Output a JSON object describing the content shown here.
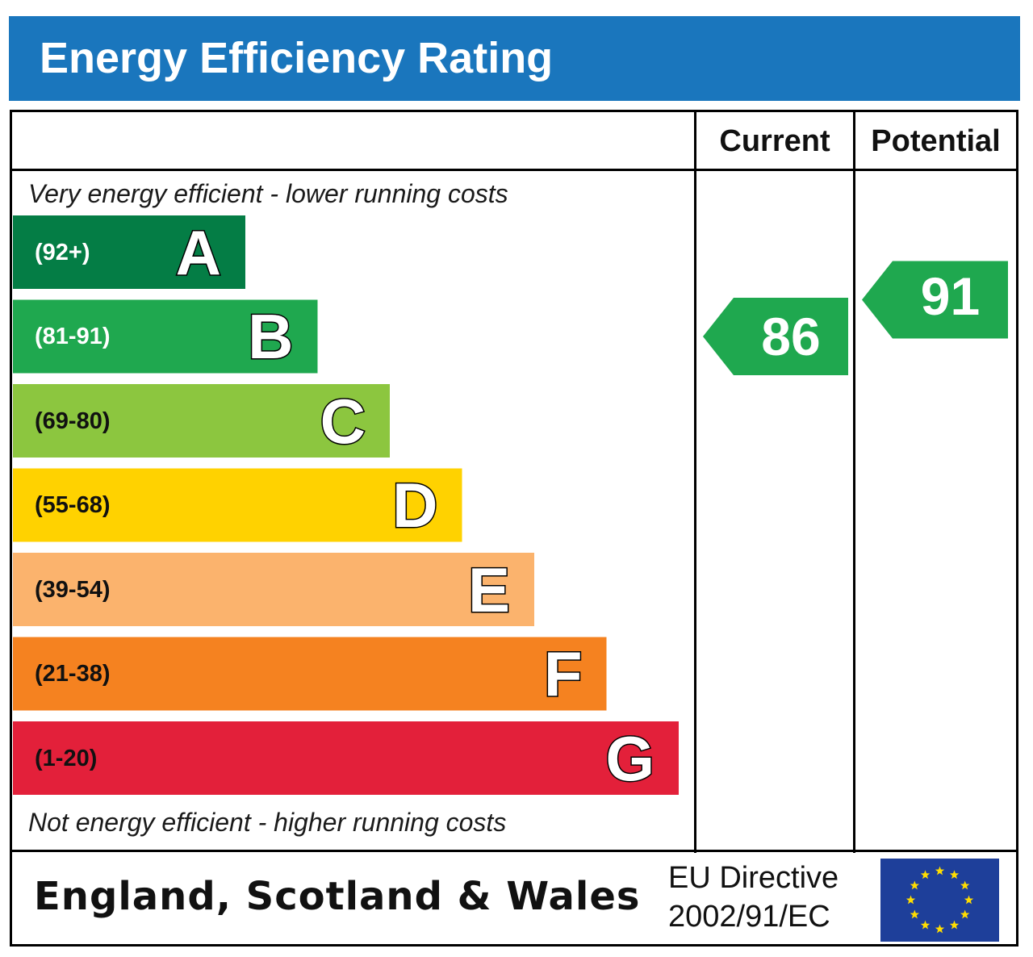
{
  "title": "Energy Efficiency Rating",
  "colors": {
    "title_bg": "#1a76bd",
    "rating_arrow": "#1fa84f",
    "eu_flag": "#1e3f9a",
    "eu_star": "#ffdd00"
  },
  "columns": {
    "current": "Current",
    "potential": "Potential"
  },
  "notes": {
    "top": "Very energy efficient - lower running costs",
    "bottom": "Not energy efficient - higher running costs"
  },
  "chart_data": {
    "type": "bar",
    "categories": [
      "A",
      "B",
      "C",
      "D",
      "E",
      "F",
      "G"
    ],
    "bands": [
      {
        "letter": "A",
        "range": "(92+)",
        "min": 92,
        "max": 100,
        "color": "#047d45",
        "text_color": "#ffffff"
      },
      {
        "letter": "B",
        "range": "(81-91)",
        "min": 81,
        "max": 91,
        "color": "#1fa84f",
        "text_color": "#ffffff"
      },
      {
        "letter": "C",
        "range": "(69-80)",
        "min": 69,
        "max": 80,
        "color": "#8cc63f",
        "text_color": "#111111"
      },
      {
        "letter": "D",
        "range": "(55-68)",
        "min": 55,
        "max": 68,
        "color": "#ffd200",
        "text_color": "#111111"
      },
      {
        "letter": "E",
        "range": "(39-54)",
        "min": 39,
        "max": 54,
        "color": "#fbb36d",
        "text_color": "#111111"
      },
      {
        "letter": "F",
        "range": "(21-38)",
        "min": 21,
        "max": 38,
        "color": "#f58220",
        "text_color": "#111111"
      },
      {
        "letter": "G",
        "range": "(1-20)",
        "min": 1,
        "max": 20,
        "color": "#e3203a",
        "text_color": "#111111"
      }
    ],
    "current": 86,
    "potential": 91
  },
  "footer": {
    "region": "England, Scotland & Wales",
    "directive_line1": "EU Directive",
    "directive_line2": "2002/91/EC"
  }
}
